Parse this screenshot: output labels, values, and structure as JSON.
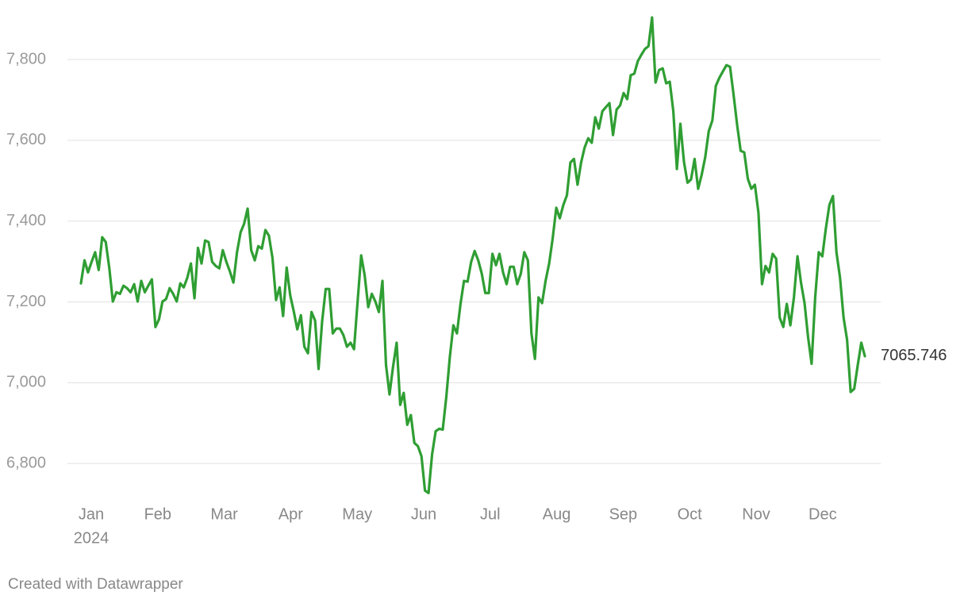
{
  "chart_data": {
    "type": "line",
    "ylim": [
      6710,
      7908
    ],
    "yticks": [
      {
        "value": 6800,
        "label": "6,800"
      },
      {
        "value": 7000,
        "label": "7,000"
      },
      {
        "value": 7200,
        "label": "7,200"
      },
      {
        "value": 7400,
        "label": "7,400"
      },
      {
        "value": 7600,
        "label": "7,600"
      },
      {
        "value": 7800,
        "label": "7,800"
      }
    ],
    "grid": true,
    "x_tick_labels": [
      "Jan",
      "Feb",
      "Mar",
      "Apr",
      "May",
      "Jun",
      "Jul",
      "Aug",
      "Sep",
      "Oct",
      "Nov",
      "Dec"
    ],
    "x_tick_sublabel": "2024",
    "series": [
      {
        "color": "#2f9e33",
        "values": [
          7246,
          7303,
          7273,
          7299,
          7323,
          7279,
          7360,
          7348,
          7283,
          7201,
          7224,
          7220,
          7240,
          7234,
          7224,
          7244,
          7201,
          7252,
          7224,
          7240,
          7256,
          7138,
          7157,
          7201,
          7207,
          7234,
          7220,
          7201,
          7246,
          7236,
          7260,
          7295,
          7209,
          7334,
          7295,
          7352,
          7348,
          7299,
          7289,
          7283,
          7328,
          7299,
          7275,
          7248,
          7323,
          7372,
          7393,
          7431,
          7328,
          7303,
          7338,
          7332,
          7378,
          7364,
          7309,
          7205,
          7236,
          7165,
          7285,
          7216,
          7177,
          7132,
          7167,
          7089,
          7073,
          7175,
          7154,
          7034,
          7152,
          7232,
          7232,
          7122,
          7134,
          7134,
          7118,
          7089,
          7099,
          7083,
          7201,
          7315,
          7266,
          7187,
          7220,
          7201,
          7175,
          7252,
          7044,
          6971,
          7040,
          7099,
          6945,
          6975,
          6896,
          6920,
          6851,
          6843,
          6818,
          6733,
          6727,
          6823,
          6880,
          6886,
          6884,
          6965,
          7063,
          7142,
          7122,
          7195,
          7252,
          7250,
          7299,
          7326,
          7303,
          7270,
          7222,
          7222,
          7319,
          7291,
          7319,
          7273,
          7244,
          7287,
          7287,
          7244,
          7270,
          7323,
          7303,
          7122,
          7059,
          7211,
          7197,
          7252,
          7295,
          7358,
          7433,
          7407,
          7440,
          7464,
          7545,
          7554,
          7490,
          7545,
          7582,
          7605,
          7594,
          7657,
          7629,
          7672,
          7682,
          7692,
          7613,
          7676,
          7686,
          7717,
          7702,
          7761,
          7765,
          7796,
          7812,
          7826,
          7833,
          7904,
          7743,
          7774,
          7778,
          7741,
          7745,
          7672,
          7529,
          7641,
          7547,
          7495,
          7503,
          7554,
          7480,
          7515,
          7558,
          7623,
          7649,
          7735,
          7755,
          7771,
          7786,
          7782,
          7712,
          7637,
          7574,
          7570,
          7505,
          7480,
          7490,
          7421,
          7244,
          7289,
          7273,
          7319,
          7307,
          7161,
          7138,
          7195,
          7142,
          7211,
          7313,
          7248,
          7197,
          7112,
          7047,
          7211,
          7323,
          7313,
          7381,
          7440,
          7462,
          7323,
          7260,
          7161,
          7106,
          6977,
          6985,
          7044,
          7099,
          7065.746
        ]
      }
    ],
    "footer": "Created with Datawrapper"
  }
}
